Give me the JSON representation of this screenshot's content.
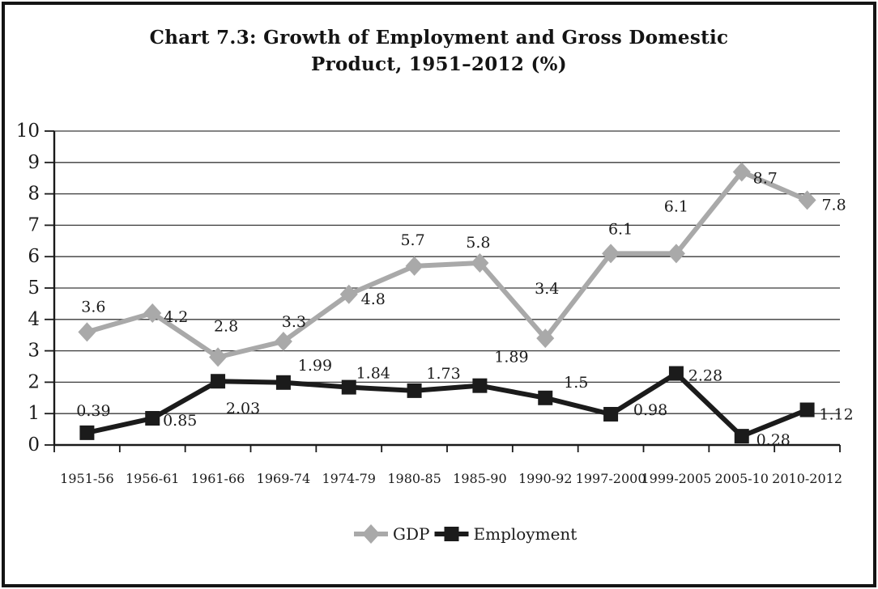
{
  "title": "Chart 7.3: Growth of Employment and Gross Domestic\nProduct, 1951–2012 (%)",
  "colors": {
    "axis": "#1a1a1a",
    "grid": "#3a3a3a",
    "text": "#1c1c1c",
    "gdp_line": "#a9a9a9",
    "employment_line": "#1b1b1b"
  },
  "chart_data": {
    "type": "line",
    "title": "Chart 7.3: Growth of Employment and Gross Domestic Product, 1951–2012 (%)",
    "xlabel": "",
    "ylabel": "",
    "ylim": [
      0,
      10
    ],
    "yticks": [
      0,
      1,
      2,
      3,
      4,
      5,
      6,
      7,
      8,
      9,
      10
    ],
    "grid": true,
    "data_labels": true,
    "legend_position": "bottom",
    "categories": [
      "1951-56",
      "1956-61",
      "1961-66",
      "1969-74",
      "1974-79",
      "1980-85",
      "1985-90",
      "1990-92",
      "1997-2000",
      "1999-2005",
      "2005-10",
      "2010-2012"
    ],
    "series": [
      {
        "name": "GDP",
        "marker": "diamond",
        "color": "#a9a9a9",
        "values": [
          3.6,
          4.2,
          2.8,
          3.3,
          4.8,
          5.7,
          5.8,
          3.4,
          6.1,
          6.1,
          8.7,
          7.8
        ],
        "label_offsets": [
          [
            8,
            -31
          ],
          [
            29,
            5
          ],
          [
            10,
            -38
          ],
          [
            13,
            -24
          ],
          [
            30,
            6
          ],
          [
            -2,
            -32
          ],
          [
            -2,
            -25
          ],
          [
            2,
            -61
          ],
          [
            12,
            -30
          ],
          [
            0,
            -58
          ],
          [
            29,
            8
          ],
          [
            33,
            6
          ]
        ]
      },
      {
        "name": "Employment",
        "marker": "square",
        "color": "#1b1b1b",
        "values": [
          0.39,
          0.85,
          2.03,
          1.99,
          1.84,
          1.73,
          1.89,
          1.5,
          0.98,
          2.28,
          0.28,
          1.12
        ],
        "label_offsets": [
          [
            8,
            -27
          ],
          [
            34,
            3
          ],
          [
            31,
            34
          ],
          [
            39,
            -21
          ],
          [
            30,
            -17
          ],
          [
            36,
            -21
          ],
          [
            39,
            -35
          ],
          [
            38,
            -19
          ],
          [
            49,
            -5
          ],
          [
            36,
            3
          ],
          [
            39,
            5
          ],
          [
            36,
            6
          ]
        ]
      }
    ]
  }
}
